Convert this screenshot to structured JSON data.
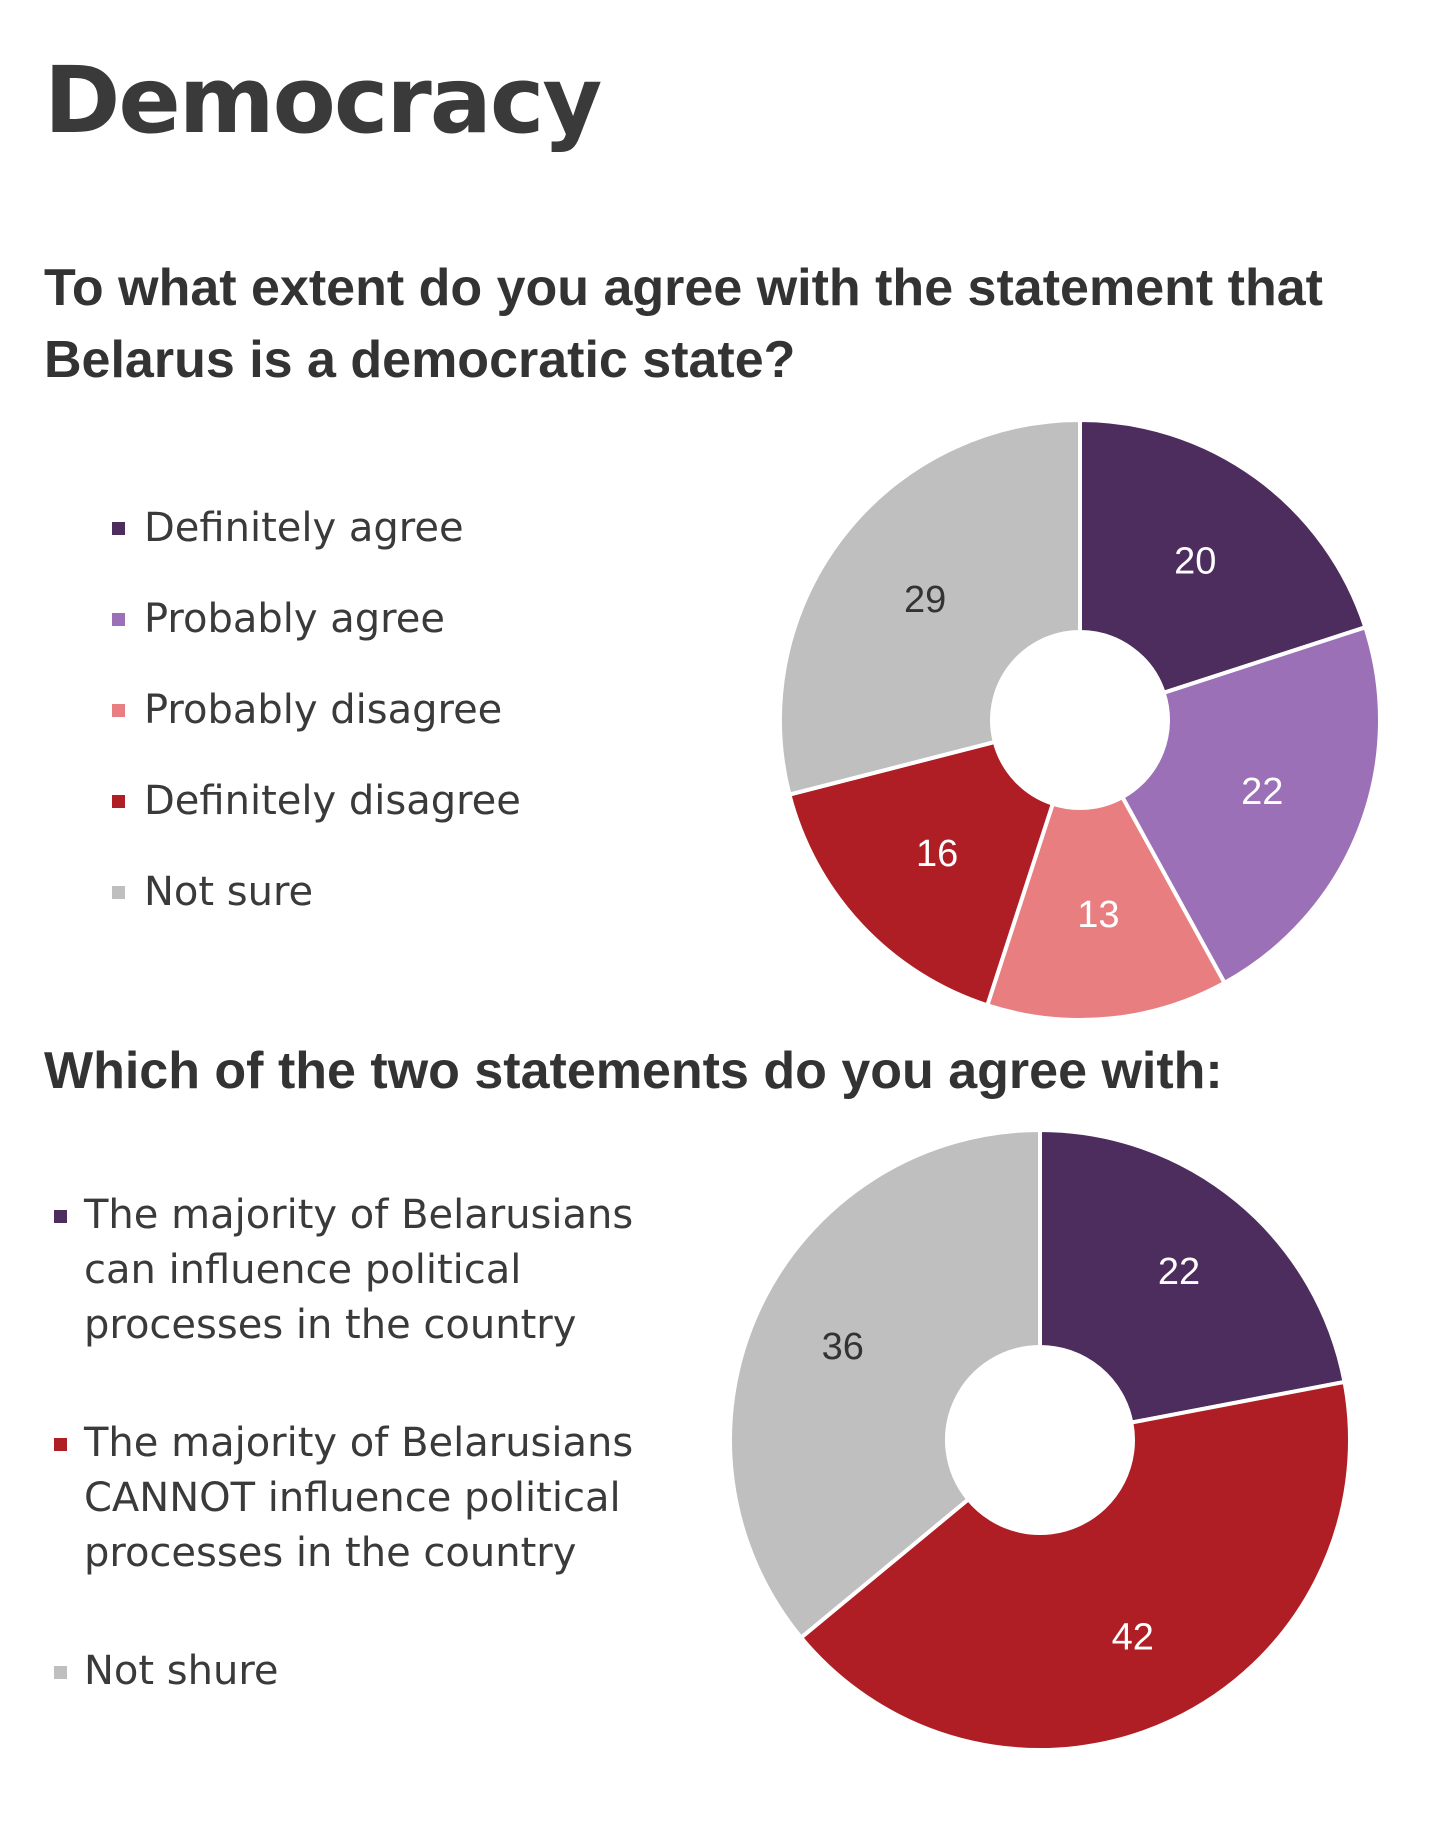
{
  "page": {
    "title": "Democracy"
  },
  "colors": {
    "definitely_agree": "#4d2c5e",
    "probably_agree": "#9b70b6",
    "probably_disagree": "#e87e80",
    "definitely_disagree": "#af1e24",
    "not_sure": "#bfbfbf"
  },
  "chart_data": [
    {
      "type": "pie",
      "variant": "donut",
      "title": "To what extent do you agree with the statement that Belarus is a democratic state?",
      "legend_position": "left",
      "categories": [
        "Definitely agree",
        "Probably agree",
        "Probably disagree",
        "Definitely disagree",
        "Not sure"
      ],
      "values": [
        20,
        22,
        13,
        16,
        29
      ],
      "colors": [
        "#4d2c5e",
        "#9b70b6",
        "#e87e80",
        "#af1e24",
        "#bfbfbf"
      ],
      "label_colors": [
        "#ffffff",
        "#ffffff",
        "#ffffff",
        "#ffffff",
        "#333333"
      ]
    },
    {
      "type": "pie",
      "variant": "donut",
      "title": "Which of the two statements do you agree with:",
      "legend_position": "left",
      "categories": [
        "The majority of Belarusians can influence political processes in the country",
        "The majority of Belarusians CANNOT influence political processes in the country",
        "Not shure"
      ],
      "values": [
        22,
        42,
        36
      ],
      "colors": [
        "#4d2c5e",
        "#af1e24",
        "#bfbfbf"
      ],
      "label_colors": [
        "#ffffff",
        "#ffffff",
        "#333333"
      ]
    }
  ]
}
